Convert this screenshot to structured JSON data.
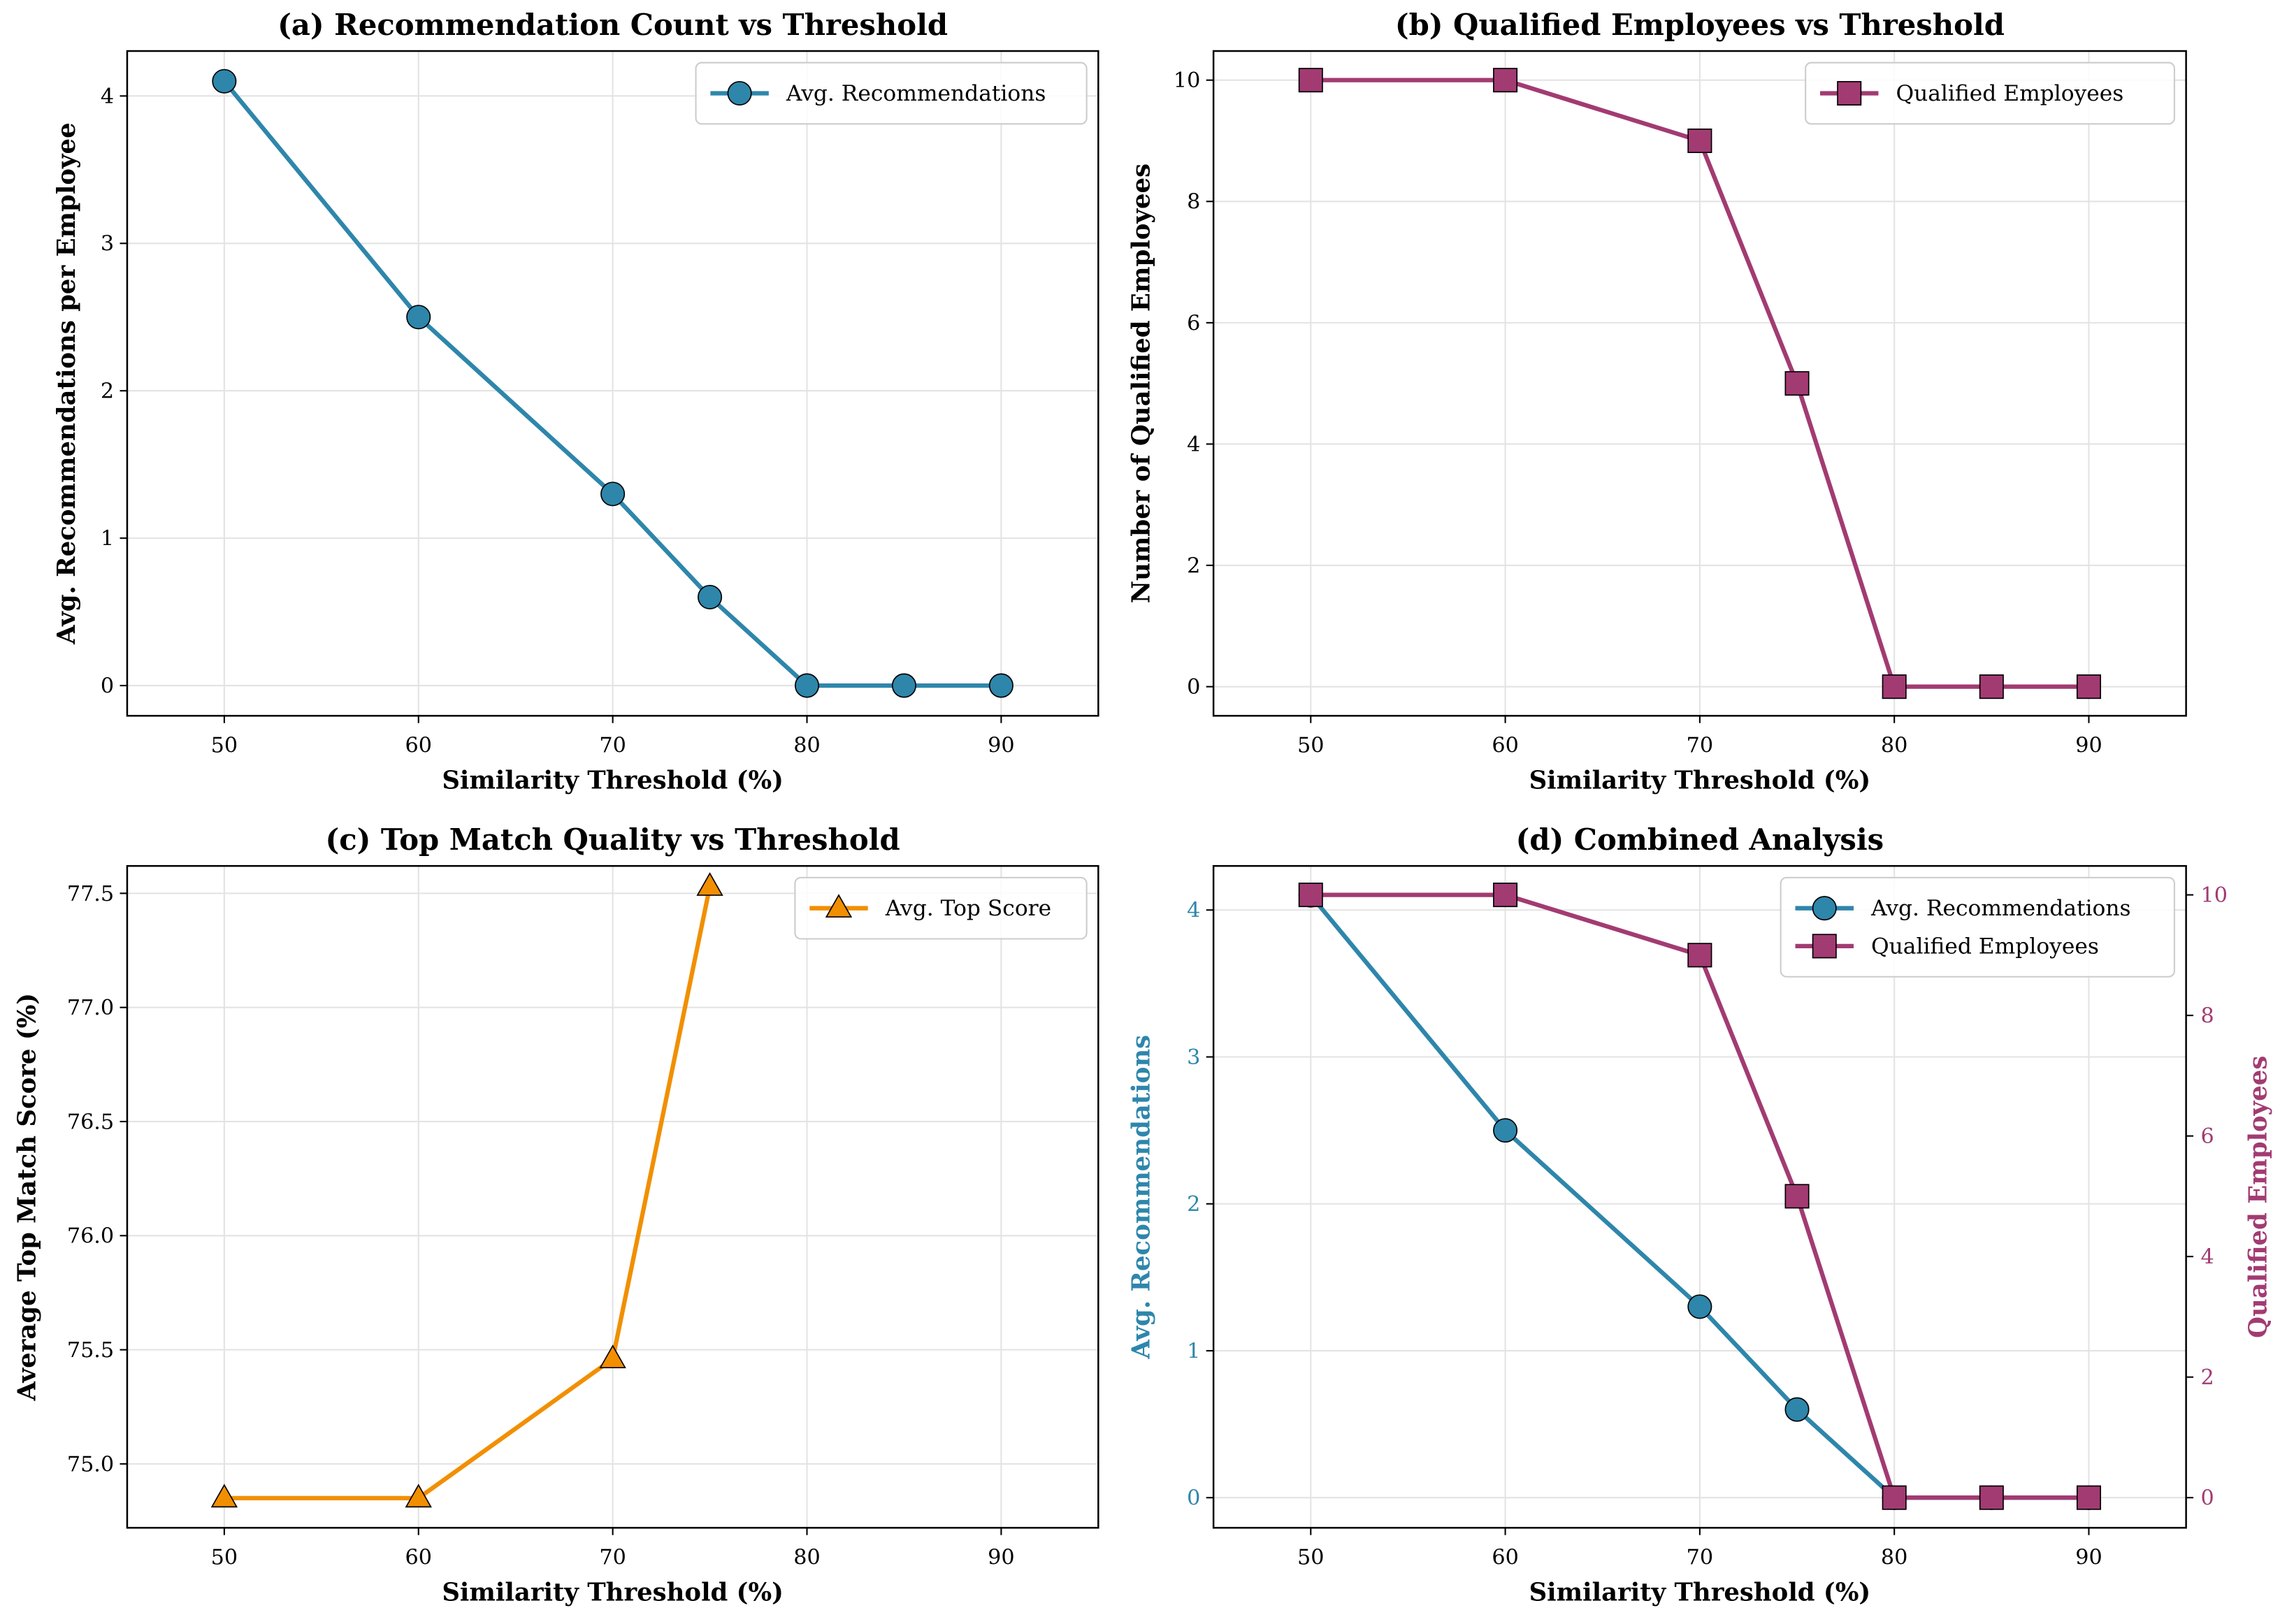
{
  "colors": {
    "blue": "#2E86AB",
    "magenta": "#A23B72",
    "orange": "#F18F01"
  },
  "chart_data": [
    {
      "type": "line",
      "title": "(a) Recommendation Count vs Threshold",
      "xlabel": "Similarity Threshold (%)",
      "ylabel": "Avg. Recommendations per Employee",
      "xlim": [
        45,
        95
      ],
      "ylim": [
        -0.205,
        4.305
      ],
      "xticks": [
        50,
        60,
        70,
        80,
        90
      ],
      "yticks": [
        0,
        1,
        2,
        3,
        4
      ],
      "grid": true,
      "legend": "top-right",
      "x": [
        50,
        60,
        70,
        75,
        80,
        85,
        90
      ],
      "series": [
        {
          "name": "Avg. Recommendations",
          "values": [
            4.1,
            2.5,
            1.3,
            0.6,
            0,
            0,
            0
          ],
          "color": "#2E86AB",
          "marker": "circle"
        }
      ]
    },
    {
      "type": "line",
      "title": "(b) Qualified Employees vs Threshold",
      "xlabel": "Similarity Threshold (%)",
      "ylabel": "Number of Qualified Employees",
      "xlim": [
        45,
        95
      ],
      "ylim": [
        -0.48,
        10.48
      ],
      "xticks": [
        50,
        60,
        70,
        80,
        90
      ],
      "yticks": [
        0,
        2,
        4,
        6,
        8,
        10
      ],
      "grid": true,
      "legend": "top-right",
      "x": [
        50,
        60,
        70,
        75,
        80,
        85,
        90
      ],
      "series": [
        {
          "name": "Qualified Employees",
          "values": [
            10,
            10,
            9,
            5,
            0,
            0,
            0
          ],
          "color": "#A23B72",
          "marker": "square"
        }
      ]
    },
    {
      "type": "line",
      "title": "(c) Top Match Quality vs Threshold",
      "xlabel": "Similarity Threshold (%)",
      "ylabel": "Average Top Match Score (%)",
      "xlim": [
        45,
        95
      ],
      "ylim": [
        74.72,
        77.62
      ],
      "xticks": [
        50,
        60,
        70,
        80,
        90
      ],
      "yticks": [
        75.0,
        75.5,
        76.0,
        76.5,
        77.0,
        77.5
      ],
      "ytick_labels": [
        "75.0",
        "75.5",
        "76.0",
        "76.5",
        "77.0",
        "77.5"
      ],
      "grid": true,
      "legend": "top-right",
      "x": [
        50,
        60,
        70,
        75
      ],
      "series": [
        {
          "name": "Avg. Top Score",
          "values": [
            74.85,
            74.85,
            75.46,
            77.53
          ],
          "color": "#F18F01",
          "marker": "triangle"
        }
      ]
    },
    {
      "type": "line",
      "title": "(d) Combined Analysis",
      "xlabel": "Similarity Threshold (%)",
      "ylabel": "Avg. Recommendations",
      "ylabel_right": "Qualified Employees",
      "xlim": [
        45,
        95
      ],
      "ylim": [
        -0.205,
        4.3
      ],
      "ylim_right": [
        -0.5,
        10.48
      ],
      "xticks": [
        50,
        60,
        70,
        80,
        90
      ],
      "yticks": [
        0,
        1,
        2,
        3,
        4
      ],
      "yticks_right": [
        0,
        2,
        4,
        6,
        8,
        10
      ],
      "grid": true,
      "legend": "top-right",
      "x": [
        50,
        60,
        70,
        75,
        80,
        85,
        90
      ],
      "series": [
        {
          "name": "Avg. Recommendations",
          "values": [
            4.1,
            2.5,
            1.3,
            0.6,
            0,
            0,
            0
          ],
          "color": "#2E86AB",
          "marker": "circle",
          "axis": "left"
        },
        {
          "name": "Qualified Employees",
          "values": [
            10,
            10,
            9,
            5,
            0,
            0,
            0
          ],
          "color": "#A23B72",
          "marker": "square",
          "axis": "right"
        }
      ]
    }
  ]
}
